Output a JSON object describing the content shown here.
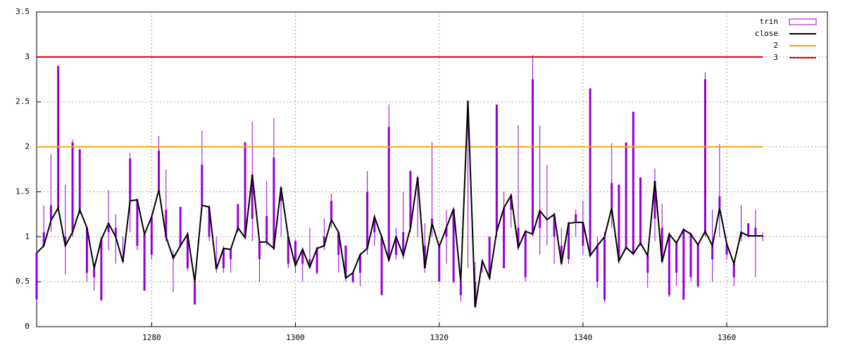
{
  "chart_data": {
    "type": "candlestick",
    "x": [
      1264,
      1265,
      1266,
      1267,
      1268,
      1269,
      1270,
      1271,
      1272,
      1273,
      1274,
      1275,
      1276,
      1277,
      1278,
      1279,
      1280,
      1281,
      1282,
      1283,
      1284,
      1285,
      1286,
      1287,
      1288,
      1289,
      1290,
      1291,
      1292,
      1293,
      1294,
      1295,
      1296,
      1297,
      1298,
      1299,
      1300,
      1301,
      1302,
      1303,
      1304,
      1305,
      1306,
      1307,
      1308,
      1309,
      1310,
      1311,
      1312,
      1313,
      1314,
      1315,
      1316,
      1317,
      1318,
      1319,
      1320,
      1321,
      1322,
      1323,
      1324,
      1325,
      1326,
      1327,
      1328,
      1329,
      1330,
      1331,
      1332,
      1333,
      1334,
      1335,
      1336,
      1337,
      1338,
      1339,
      1340,
      1341,
      1342,
      1343,
      1344,
      1345,
      1346,
      1347,
      1348,
      1349,
      1350,
      1351,
      1352,
      1353,
      1354,
      1355,
      1356,
      1357,
      1358,
      1359,
      1360,
      1361,
      1362,
      1363,
      1364,
      1365
    ],
    "trin": {
      "name": "trin",
      "color": "#9400d3",
      "open": [
        0.82,
        0.9,
        1.18,
        1.32,
        0.9,
        1.05,
        1.3,
        1.1,
        0.65,
        0.97,
        1.15,
        1.0,
        0.72,
        1.4,
        1.41,
        1.03,
        1.22,
        1.52,
        1.0,
        0.76,
        0.9,
        1.03,
        0.5,
        1.35,
        1.33,
        0.64,
        0.87,
        0.86,
        1.1,
        0.99,
        1.69,
        0.94,
        0.94,
        0.87,
        1.55,
        1.0,
        0.68,
        0.86,
        0.66,
        0.87,
        0.9,
        1.19,
        1.05,
        0.54,
        0.6,
        0.8,
        0.87,
        1.22,
        1.0,
        0.74,
        1.0,
        0.79,
        1.1,
        1.66,
        0.65,
        1.15,
        0.89,
        1.1,
        1.31,
        0.5,
        2.51,
        0.22,
        0.73,
        0.54,
        1.06,
        1.32,
        1.46,
        0.88,
        1.06,
        1.03,
        1.29,
        1.19,
        1.25,
        0.7,
        1.15,
        1.16,
        1.16,
        0.79,
        0.9,
        1.0,
        1.32,
        0.73,
        0.88,
        0.81,
        0.93,
        0.79,
        1.62,
        0.72,
        1.03,
        0.93,
        1.08,
        1.03,
        0.91,
        1.06,
        0.9,
        1.32,
        0.92,
        0.7,
        1.05,
        1.01,
        1.01,
        1.01
      ],
      "close": [
        0.3,
        1.05,
        1.35,
        2.9,
        1.0,
        2.05,
        1.97,
        0.6,
        0.55,
        0.3,
        1.05,
        1.1,
        0.78,
        1.87,
        0.9,
        0.4,
        0.8,
        1.96,
        1.3,
        0.8,
        1.33,
        0.65,
        0.25,
        1.8,
        1.0,
        0.7,
        0.65,
        0.75,
        1.36,
        2.05,
        1.2,
        0.75,
        1.23,
        1.88,
        1.4,
        0.7,
        0.95,
        0.7,
        0.75,
        0.6,
        1.0,
        1.4,
        0.8,
        0.9,
        0.5,
        0.6,
        1.5,
        1.05,
        0.35,
        2.22,
        0.8,
        1.05,
        1.73,
        1.6,
        0.9,
        1.2,
        0.5,
        1.0,
        0.5,
        0.35,
        2.5,
        0.5,
        0.7,
        1.0,
        2.47,
        0.65,
        1.3,
        1.1,
        0.55,
        2.75,
        1.1,
        1.2,
        1.0,
        0.9,
        0.75,
        1.25,
        0.9,
        2.65,
        0.5,
        0.3,
        1.6,
        1.58,
        2.05,
        2.39,
        1.66,
        0.6,
        1.2,
        1.1,
        0.35,
        0.6,
        0.3,
        0.55,
        0.45,
        2.75,
        0.75,
        1.45,
        0.8,
        0.55,
        1.0,
        1.15,
        1.1,
        1.0
      ],
      "low": [
        0.28,
        0.88,
        1.05,
        1.3,
        0.58,
        1.0,
        1.25,
        0.5,
        0.4,
        0.28,
        0.85,
        0.7,
        0.7,
        1.05,
        0.85,
        0.4,
        0.75,
        1.5,
        0.95,
        0.38,
        0.88,
        0.62,
        0.24,
        1.3,
        0.95,
        0.6,
        0.6,
        0.6,
        1.05,
        0.97,
        0.95,
        0.5,
        0.9,
        0.85,
        1.0,
        0.65,
        0.6,
        0.5,
        0.64,
        0.58,
        0.85,
        1.1,
        0.6,
        0.5,
        0.48,
        0.45,
        0.8,
        0.9,
        0.35,
        0.72,
        0.75,
        0.75,
        1.05,
        1.0,
        0.6,
        1.0,
        0.5,
        0.7,
        0.48,
        0.28,
        0.65,
        0.2,
        0.6,
        0.52,
        1.0,
        0.65,
        1.1,
        0.85,
        0.5,
        1.0,
        0.8,
        0.9,
        0.7,
        0.68,
        0.7,
        1.0,
        0.8,
        0.77,
        0.43,
        0.27,
        1.1,
        0.7,
        0.86,
        0.79,
        0.9,
        0.43,
        0.95,
        0.7,
        0.33,
        0.45,
        0.3,
        0.5,
        0.43,
        1.0,
        0.5,
        1.0,
        0.75,
        0.45,
        0.95,
        0.99,
        0.55,
        0.95
      ],
      "high": [
        0.85,
        1.35,
        1.92,
        2.9,
        1.58,
        2.08,
        1.98,
        1.12,
        0.7,
        1.0,
        1.52,
        1.25,
        1.0,
        1.93,
        1.43,
        1.05,
        1.25,
        2.12,
        1.75,
        0.85,
        1.34,
        1.05,
        0.52,
        2.18,
        1.35,
        1.0,
        0.9,
        0.88,
        1.37,
        2.05,
        2.28,
        0.96,
        1.62,
        2.32,
        1.57,
        1.02,
        0.97,
        0.88,
        1.1,
        0.89,
        1.2,
        1.48,
        1.07,
        0.9,
        0.62,
        0.82,
        1.73,
        1.25,
        1.02,
        2.47,
        1.1,
        1.5,
        1.74,
        1.68,
        1.15,
        2.05,
        0.9,
        1.3,
        1.33,
        0.52,
        2.52,
        0.72,
        0.75,
        1.0,
        2.47,
        1.5,
        1.48,
        2.24,
        1.08,
        3.02,
        2.24,
        1.8,
        1.27,
        1.1,
        1.17,
        1.3,
        1.4,
        2.65,
        1.0,
        1.05,
        2.04,
        1.58,
        2.05,
        2.39,
        1.66,
        0.81,
        1.76,
        1.37,
        1.05,
        0.95,
        1.1,
        1.05,
        0.93,
        2.83,
        1.3,
        2.03,
        0.94,
        0.72,
        1.35,
        1.15,
        1.3,
        1.05
      ]
    },
    "line": {
      "name": "close",
      "color": "#000000",
      "values": [
        0.82,
        0.9,
        1.18,
        1.32,
        0.9,
        1.05,
        1.3,
        1.1,
        0.65,
        0.97,
        1.15,
        1.0,
        0.72,
        1.4,
        1.41,
        1.03,
        1.22,
        1.52,
        1.0,
        0.76,
        0.9,
        1.03,
        0.5,
        1.35,
        1.33,
        0.64,
        0.87,
        0.86,
        1.1,
        0.99,
        1.69,
        0.94,
        0.94,
        0.87,
        1.55,
        1.0,
        0.68,
        0.86,
        0.66,
        0.87,
        0.9,
        1.19,
        1.05,
        0.54,
        0.6,
        0.8,
        0.87,
        1.22,
        1.0,
        0.74,
        1.0,
        0.79,
        1.1,
        1.66,
        0.65,
        1.15,
        0.89,
        1.1,
        1.31,
        0.5,
        2.51,
        0.22,
        0.73,
        0.54,
        1.06,
        1.32,
        1.46,
        0.88,
        1.06,
        1.03,
        1.29,
        1.19,
        1.25,
        0.7,
        1.15,
        1.16,
        1.16,
        0.79,
        0.9,
        1.0,
        1.32,
        0.73,
        0.88,
        0.81,
        0.93,
        0.79,
        1.62,
        0.72,
        1.03,
        0.93,
        1.08,
        1.03,
        0.91,
        1.06,
        0.9,
        1.32,
        0.92,
        0.7,
        1.05,
        1.01,
        1.01,
        1.01
      ]
    },
    "hlines": [
      {
        "name": "2",
        "color": "#ffa500",
        "y": 2
      },
      {
        "name": "3",
        "color": "#e00000",
        "y": 3
      }
    ],
    "xlim": [
      1264,
      1374
    ],
    "xticks": [
      1280,
      1300,
      1320,
      1340,
      1360
    ],
    "ylim": [
      0,
      3.5
    ],
    "yticks": [
      0,
      0.5,
      1,
      1.5,
      2,
      2.5,
      3,
      3.5
    ],
    "grid": true,
    "legend": "top-right"
  }
}
